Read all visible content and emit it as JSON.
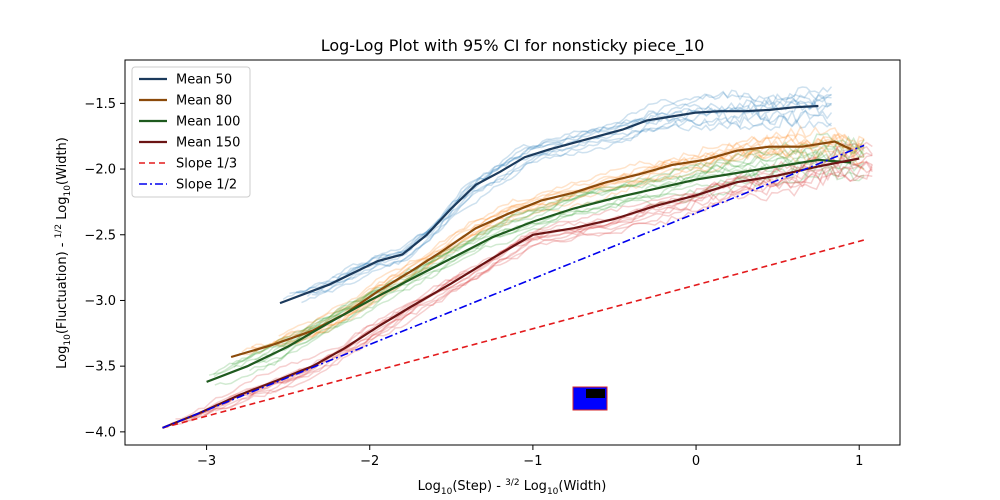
{
  "chart_data": {
    "type": "line",
    "title": "Log-Log Plot with 95% CI for nonsticky piece_10",
    "xlabel": {
      "pre": "Log",
      "sub1": "10",
      "mid": "(Step) - ",
      "frac_num": "3",
      "frac_den": "2",
      "post_log": " Log",
      "sub2": "10",
      "end": "(Width)"
    },
    "ylabel": {
      "pre": "Log",
      "sub1": "10",
      "mid": "(Fluctuation) - ",
      "frac_num": "1",
      "frac_den": "2",
      "post_log": " Log",
      "sub2": "10",
      "end": "(Width)"
    },
    "xlim": [
      -3.5,
      1.25
    ],
    "ylim": [
      -4.1,
      -1.17
    ],
    "xticks": [
      -3,
      -2,
      -1,
      0,
      1
    ],
    "xtick_labels": [
      "−3",
      "−2",
      "−1",
      "0",
      "1"
    ],
    "yticks": [
      -4.0,
      -3.5,
      -3.0,
      -2.5,
      -2.0,
      -1.5
    ],
    "ytick_labels": [
      "−4.0",
      "−3.5",
      "−3.0",
      "−2.5",
      "−2.0",
      "−1.5"
    ],
    "legend_position": "top-left",
    "series": [
      {
        "name": "Mean 50",
        "color": "#1b3a5c",
        "style": "solid",
        "ci_color": "#1f77b4",
        "points": [
          [
            -2.55,
            -3.02
          ],
          [
            -2.25,
            -2.88
          ],
          [
            -2.1,
            -2.79
          ],
          [
            -1.95,
            -2.7
          ],
          [
            -1.8,
            -2.65
          ],
          [
            -1.65,
            -2.5
          ],
          [
            -1.5,
            -2.3
          ],
          [
            -1.35,
            -2.12
          ],
          [
            -1.2,
            -2.02
          ],
          [
            -1.05,
            -1.91
          ],
          [
            -0.9,
            -1.85
          ],
          [
            -0.75,
            -1.8
          ],
          [
            -0.6,
            -1.75
          ],
          [
            -0.45,
            -1.7
          ],
          [
            -0.3,
            -1.63
          ],
          [
            -0.15,
            -1.6
          ],
          [
            0.0,
            -1.57
          ],
          [
            0.15,
            -1.56
          ],
          [
            0.3,
            -1.56
          ],
          [
            0.45,
            -1.55
          ],
          [
            0.6,
            -1.53
          ],
          [
            0.75,
            -1.52
          ]
        ]
      },
      {
        "name": "Mean 80",
        "color": "#8b4a0a",
        "style": "solid",
        "ci_color": "#ff7f0e",
        "points": [
          [
            -2.85,
            -3.43
          ],
          [
            -2.6,
            -3.34
          ],
          [
            -2.35,
            -3.23
          ],
          [
            -2.15,
            -3.1
          ],
          [
            -1.95,
            -2.93
          ],
          [
            -1.75,
            -2.78
          ],
          [
            -1.55,
            -2.62
          ],
          [
            -1.35,
            -2.45
          ],
          [
            -1.15,
            -2.34
          ],
          [
            -0.95,
            -2.24
          ],
          [
            -0.75,
            -2.18
          ],
          [
            -0.55,
            -2.1
          ],
          [
            -0.35,
            -2.04
          ],
          [
            -0.15,
            -1.97
          ],
          [
            0.05,
            -1.93
          ],
          [
            0.25,
            -1.86
          ],
          [
            0.45,
            -1.83
          ],
          [
            0.65,
            -1.83
          ],
          [
            0.85,
            -1.79
          ],
          [
            0.95,
            -1.85
          ]
        ]
      },
      {
        "name": "Mean 100",
        "color": "#1e5a1e",
        "style": "solid",
        "ci_color": "#2ca02c",
        "points": [
          [
            -3.0,
            -3.62
          ],
          [
            -2.75,
            -3.5
          ],
          [
            -2.5,
            -3.35
          ],
          [
            -2.25,
            -3.17
          ],
          [
            -2.0,
            -3.0
          ],
          [
            -1.75,
            -2.84
          ],
          [
            -1.5,
            -2.68
          ],
          [
            -1.25,
            -2.52
          ],
          [
            -1.0,
            -2.4
          ],
          [
            -0.75,
            -2.3
          ],
          [
            -0.5,
            -2.22
          ],
          [
            -0.25,
            -2.15
          ],
          [
            0.0,
            -2.08
          ],
          [
            0.25,
            -2.03
          ],
          [
            0.5,
            -1.98
          ],
          [
            0.75,
            -1.93
          ],
          [
            0.95,
            -1.95
          ]
        ]
      },
      {
        "name": "Mean 150",
        "color": "#6b1414",
        "style": "solid",
        "ci_color": "#d62728",
        "points": [
          [
            -3.27,
            -3.97
          ],
          [
            -3.05,
            -3.86
          ],
          [
            -2.8,
            -3.72
          ],
          [
            -2.55,
            -3.6
          ],
          [
            -2.35,
            -3.5
          ],
          [
            -2.15,
            -3.36
          ],
          [
            -1.95,
            -3.2
          ],
          [
            -1.75,
            -3.05
          ],
          [
            -1.5,
            -2.87
          ],
          [
            -1.25,
            -2.68
          ],
          [
            -1.0,
            -2.5
          ],
          [
            -0.75,
            -2.45
          ],
          [
            -0.5,
            -2.38
          ],
          [
            -0.25,
            -2.28
          ],
          [
            0.0,
            -2.2
          ],
          [
            0.25,
            -2.1
          ],
          [
            0.5,
            -2.05
          ],
          [
            0.75,
            -1.98
          ],
          [
            1.0,
            -1.92
          ]
        ]
      },
      {
        "name": "Slope 1/3",
        "color": "#e31a1c",
        "style": "dashed",
        "points": [
          [
            -3.27,
            -3.97
          ],
          [
            1.03,
            -2.54
          ]
        ]
      },
      {
        "name": "Slope 1/2",
        "color": "#0000ee",
        "style": "dashdot",
        "points": [
          [
            -3.27,
            -3.97
          ],
          [
            1.03,
            -1.82
          ]
        ]
      }
    ]
  }
}
